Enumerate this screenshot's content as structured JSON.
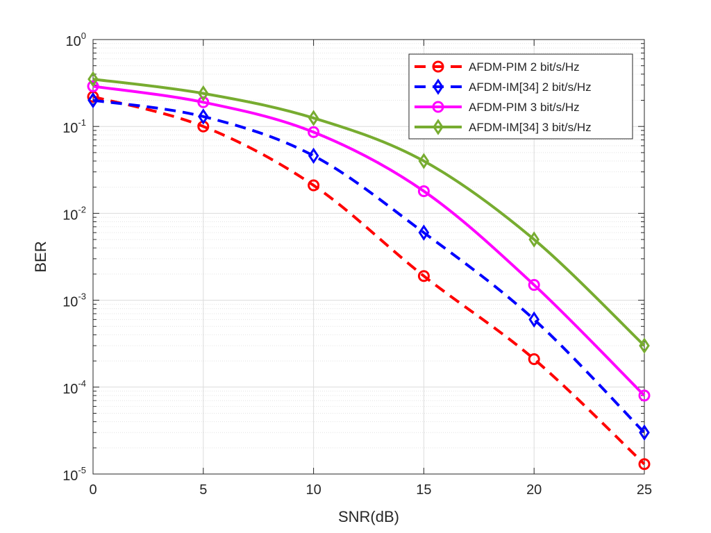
{
  "chart_data": {
    "type": "line",
    "title": "",
    "xlabel": "SNR(dB)",
    "ylabel": "BER",
    "yscale": "log",
    "xlim": [
      0,
      25
    ],
    "ylim": [
      1e-05,
      1
    ],
    "grid": true,
    "minor_grid": true,
    "legend_position": "top-right",
    "x": [
      0,
      5,
      10,
      15,
      20,
      25
    ],
    "x_ticks": [
      "0",
      "5",
      "10",
      "15",
      "20",
      "25"
    ],
    "y_ticks": [
      {
        "base": "10",
        "exp": "0"
      },
      {
        "base": "10",
        "exp": "-1"
      },
      {
        "base": "10",
        "exp": "-2"
      },
      {
        "base": "10",
        "exp": "-3"
      },
      {
        "base": "10",
        "exp": "-4"
      },
      {
        "base": "10",
        "exp": "-5"
      }
    ],
    "series": [
      {
        "name": "AFDM-PIM 2 bit/s/Hz",
        "color": "#ff0000",
        "dash": "dashed",
        "marker": "circle",
        "values": [
          0.22,
          0.1,
          0.021,
          0.0019,
          0.00021,
          1.3e-05
        ]
      },
      {
        "name": "AFDM-IM[34] 2 bit/s/Hz",
        "color": "#0000ff",
        "dash": "dashed",
        "marker": "diamond",
        "values": [
          0.2,
          0.13,
          0.046,
          0.006,
          0.0006,
          3e-05
        ]
      },
      {
        "name": "AFDM-PIM 3 bit/s/Hz",
        "color": "#ff00ff",
        "dash": "solid",
        "marker": "circle",
        "values": [
          0.29,
          0.19,
          0.086,
          0.018,
          0.0015,
          8e-05
        ]
      },
      {
        "name": "AFDM-IM[34] 3 bit/s/Hz",
        "color": "#77ac30",
        "dash": "solid",
        "marker": "diamond",
        "values": [
          0.35,
          0.24,
          0.125,
          0.04,
          0.005,
          0.0003
        ]
      }
    ]
  }
}
